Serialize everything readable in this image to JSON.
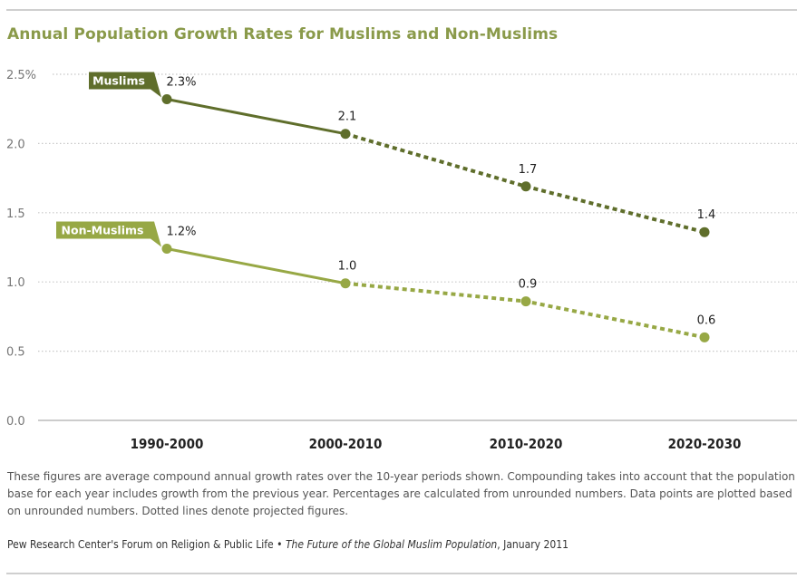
{
  "title": "Annual Population Growth Rates for Muslims and Non-Muslims",
  "note": "These figures are average compound annual growth rates over the 10-year periods shown. Compounding takes into account that the population base for each year includes growth from the previous year. Percentages are calculated from unrounded numbers. Data points are plotted based on unrounded numbers. Dotted lines denote projected figures.",
  "source": {
    "org": "Pew Research Center's Forum on Religion & Public Life",
    "bullet": " • ",
    "publication": "The Future of the Global Muslim Population",
    "date": ", January 2011"
  },
  "colors": {
    "title": "#8a9a4a",
    "muslims": "#5f6e2b",
    "non_muslims": "#97a845",
    "grid": "#c8c8c8",
    "axis_text": "#777777"
  },
  "chart_data": {
    "type": "line",
    "title": "Annual Population Growth Rates for Muslims and Non-Muslims",
    "xlabel": "",
    "ylabel": "",
    "categories": [
      "1990-2000",
      "2000-2010",
      "2010-2020",
      "2020-2030"
    ],
    "ylim": [
      0,
      2.5
    ],
    "yticks": [
      0,
      0.5,
      1.0,
      1.5,
      2.0,
      2.5
    ],
    "ytick_labels": [
      "0.0",
      "0.5",
      "1.0",
      "1.5",
      "2.0",
      "2.5%"
    ],
    "grid": true,
    "projected_from_index": 1,
    "series": [
      {
        "name": "Muslims",
        "values": [
          2.32,
          2.07,
          1.69,
          1.36
        ],
        "labels": [
          "2.3%",
          "2.1",
          "1.7",
          "1.4"
        ],
        "color": "#5f6e2b"
      },
      {
        "name": "Non-Muslims",
        "values": [
          1.24,
          0.99,
          0.86,
          0.6
        ],
        "labels": [
          "1.2%",
          "1.0",
          "0.9",
          "0.6"
        ],
        "color": "#97a845"
      }
    ],
    "annotations": [
      "Dotted lines denote projected figures"
    ]
  }
}
